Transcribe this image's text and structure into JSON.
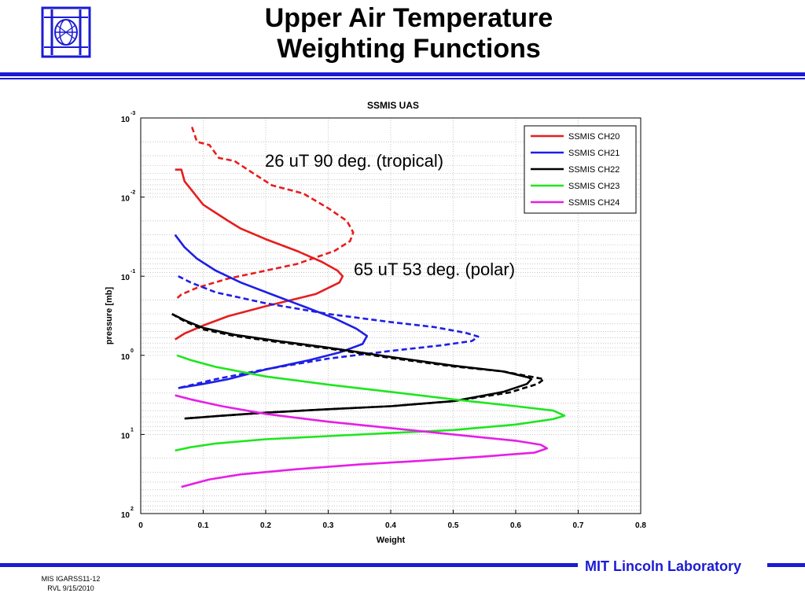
{
  "slide": {
    "title_line1": "Upper Air Temperature",
    "title_line2": "Weighting Functions",
    "footer_org": "MIT Lincoln Laboratory",
    "footer_id": "MIS IGARSS11-12",
    "footer_author_date": "RVL 9/15/2010",
    "accent_color": "#1b1bd4"
  },
  "chart_data": {
    "type": "line",
    "title": "SSMIS UAS",
    "xlabel": "Weight",
    "ylabel": "pressure [mb]",
    "xlim": [
      0,
      0.8
    ],
    "ylim": [
      100,
      0.001
    ],
    "y_scale": "log",
    "y_reversed": true,
    "grid": true,
    "x_ticks": [
      0,
      0.1,
      0.2,
      0.3,
      0.4,
      0.5,
      0.6,
      0.7,
      0.8
    ],
    "x_tick_labels": [
      "0",
      "0.1",
      "0.2",
      "0.3",
      "0.4",
      "0.5",
      "0.6",
      "0.7",
      "0.8"
    ],
    "y_ticks": [
      {
        "value": 0.001,
        "base": "10",
        "exp": "-3"
      },
      {
        "value": 0.01,
        "base": "10",
        "exp": "-2"
      },
      {
        "value": 0.1,
        "base": "10",
        "exp": "-1"
      },
      {
        "value": 1,
        "base": "10",
        "exp": "0"
      },
      {
        "value": 10,
        "base": "10",
        "exp": "1"
      },
      {
        "value": 100,
        "base": "10",
        "exp": "2"
      }
    ],
    "legend_placement": "top-right",
    "annotations": [
      {
        "text": "26 uT 90 deg. (tropical)"
      },
      {
        "text": "65 uT 53 deg. (polar)"
      }
    ],
    "series": [
      {
        "name": "SSMIS CH20",
        "color": "#e61e1e",
        "dash": false,
        "points": [
          [
            0.055,
            0.0045
          ],
          [
            0.065,
            0.0045
          ],
          [
            0.07,
            0.0063
          ],
          [
            0.08,
            0.0079
          ],
          [
            0.1,
            0.0125
          ],
          [
            0.12,
            0.0158
          ],
          [
            0.14,
            0.02
          ],
          [
            0.16,
            0.025
          ],
          [
            0.2,
            0.034
          ],
          [
            0.25,
            0.048
          ],
          [
            0.29,
            0.066
          ],
          [
            0.315,
            0.085
          ],
          [
            0.323,
            0.1
          ],
          [
            0.318,
            0.12
          ],
          [
            0.28,
            0.168
          ],
          [
            0.2,
            0.24
          ],
          [
            0.14,
            0.32
          ],
          [
            0.1,
            0.42
          ],
          [
            0.07,
            0.53
          ],
          [
            0.055,
            0.63
          ]
        ]
      },
      {
        "name": "SSMIS CH20",
        "color": "#e61e1e",
        "dash": true,
        "points": [
          [
            0.082,
            0.0013
          ],
          [
            0.09,
            0.002
          ],
          [
            0.11,
            0.0022
          ],
          [
            0.125,
            0.0032
          ],
          [
            0.15,
            0.0035
          ],
          [
            0.18,
            0.005
          ],
          [
            0.21,
            0.0071
          ],
          [
            0.26,
            0.009
          ],
          [
            0.3,
            0.0138
          ],
          [
            0.33,
            0.02
          ],
          [
            0.34,
            0.028
          ],
          [
            0.335,
            0.036
          ],
          [
            0.31,
            0.048
          ],
          [
            0.25,
            0.07
          ],
          [
            0.2,
            0.085
          ],
          [
            0.14,
            0.107
          ],
          [
            0.09,
            0.14
          ],
          [
            0.065,
            0.17
          ],
          [
            0.055,
            0.2
          ]
        ]
      },
      {
        "name": "SSMIS CH21",
        "color": "#1e1ee6",
        "dash": false,
        "points": [
          [
            0.055,
            0.03
          ],
          [
            0.07,
            0.043
          ],
          [
            0.09,
            0.06
          ],
          [
            0.12,
            0.085
          ],
          [
            0.16,
            0.12
          ],
          [
            0.21,
            0.17
          ],
          [
            0.26,
            0.24
          ],
          [
            0.31,
            0.34
          ],
          [
            0.345,
            0.46
          ],
          [
            0.362,
            0.57
          ],
          [
            0.355,
            0.72
          ],
          [
            0.32,
            0.91
          ],
          [
            0.27,
            1.15
          ],
          [
            0.2,
            1.51
          ],
          [
            0.14,
            2.0
          ],
          [
            0.1,
            2.3
          ],
          [
            0.06,
            2.6
          ]
        ]
      },
      {
        "name": "SSMIS CH21",
        "color": "#1e1ee6",
        "dash": true,
        "points": [
          [
            0.06,
            0.1
          ],
          [
            0.08,
            0.12
          ],
          [
            0.12,
            0.16
          ],
          [
            0.2,
            0.22
          ],
          [
            0.3,
            0.3
          ],
          [
            0.4,
            0.38
          ],
          [
            0.47,
            0.44
          ],
          [
            0.52,
            0.52
          ],
          [
            0.54,
            0.58
          ],
          [
            0.53,
            0.66
          ],
          [
            0.48,
            0.75
          ],
          [
            0.4,
            0.88
          ],
          [
            0.3,
            1.1
          ],
          [
            0.2,
            1.5
          ],
          [
            0.12,
            2.0
          ],
          [
            0.06,
            2.6
          ]
        ]
      },
      {
        "name": "SSMIS CH22",
        "color": "#000000",
        "dash": false,
        "points": [
          [
            0.05,
            0.3
          ],
          [
            0.07,
            0.36
          ],
          [
            0.1,
            0.45
          ],
          [
            0.15,
            0.55
          ],
          [
            0.22,
            0.66
          ],
          [
            0.3,
            0.8
          ],
          [
            0.4,
            1.05
          ],
          [
            0.5,
            1.35
          ],
          [
            0.58,
            1.6
          ],
          [
            0.62,
            1.9
          ],
          [
            0.625,
            2.0
          ],
          [
            0.618,
            2.3
          ],
          [
            0.58,
            2.9
          ],
          [
            0.5,
            3.8
          ],
          [
            0.4,
            4.4
          ],
          [
            0.3,
            4.8
          ],
          [
            0.2,
            5.3
          ],
          [
            0.13,
            5.8
          ],
          [
            0.07,
            6.3
          ]
        ]
      },
      {
        "name": "SSMIS CH22",
        "color": "#000000",
        "dash": true,
        "points": [
          [
            0.05,
            0.3
          ],
          [
            0.07,
            0.37
          ],
          [
            0.1,
            0.47
          ],
          [
            0.15,
            0.57
          ],
          [
            0.22,
            0.68
          ],
          [
            0.3,
            0.82
          ],
          [
            0.4,
            1.08
          ],
          [
            0.5,
            1.38
          ],
          [
            0.58,
            1.6
          ],
          [
            0.63,
            1.9
          ],
          [
            0.645,
            2.0
          ],
          [
            0.635,
            2.3
          ],
          [
            0.59,
            2.95
          ],
          [
            0.5,
            3.8
          ],
          [
            0.4,
            4.4
          ],
          [
            0.3,
            4.8
          ],
          [
            0.2,
            5.3
          ],
          [
            0.13,
            5.8
          ],
          [
            0.07,
            6.3
          ]
        ]
      },
      {
        "name": "SSMIS CH23",
        "color": "#1ee61e",
        "dash": false,
        "points": [
          [
            0.058,
            1.0
          ],
          [
            0.08,
            1.15
          ],
          [
            0.12,
            1.4
          ],
          [
            0.2,
            1.85
          ],
          [
            0.3,
            2.35
          ],
          [
            0.4,
            2.9
          ],
          [
            0.5,
            3.6
          ],
          [
            0.6,
            4.4
          ],
          [
            0.66,
            5.0
          ],
          [
            0.672,
            5.5
          ],
          [
            0.678,
            5.8
          ],
          [
            0.66,
            6.4
          ],
          [
            0.6,
            7.5
          ],
          [
            0.5,
            8.8
          ],
          [
            0.4,
            9.6
          ],
          [
            0.3,
            10.5
          ],
          [
            0.2,
            11.5
          ],
          [
            0.12,
            13.0
          ],
          [
            0.08,
            14.5
          ],
          [
            0.055,
            16.0
          ]
        ]
      },
      {
        "name": "SSMIS CH24",
        "color": "#e61ee6",
        "dash": false,
        "points": [
          [
            0.055,
            3.2
          ],
          [
            0.08,
            3.6
          ],
          [
            0.13,
            4.4
          ],
          [
            0.2,
            5.5
          ],
          [
            0.3,
            6.9
          ],
          [
            0.4,
            8.3
          ],
          [
            0.5,
            10.0
          ],
          [
            0.6,
            12.0
          ],
          [
            0.64,
            13.5
          ],
          [
            0.65,
            15.0
          ],
          [
            0.63,
            17.0
          ],
          [
            0.55,
            19.0
          ],
          [
            0.45,
            21.5
          ],
          [
            0.35,
            24.0
          ],
          [
            0.25,
            27.5
          ],
          [
            0.16,
            32.0
          ],
          [
            0.11,
            37.0
          ],
          [
            0.065,
            46.0
          ]
        ]
      }
    ]
  }
}
